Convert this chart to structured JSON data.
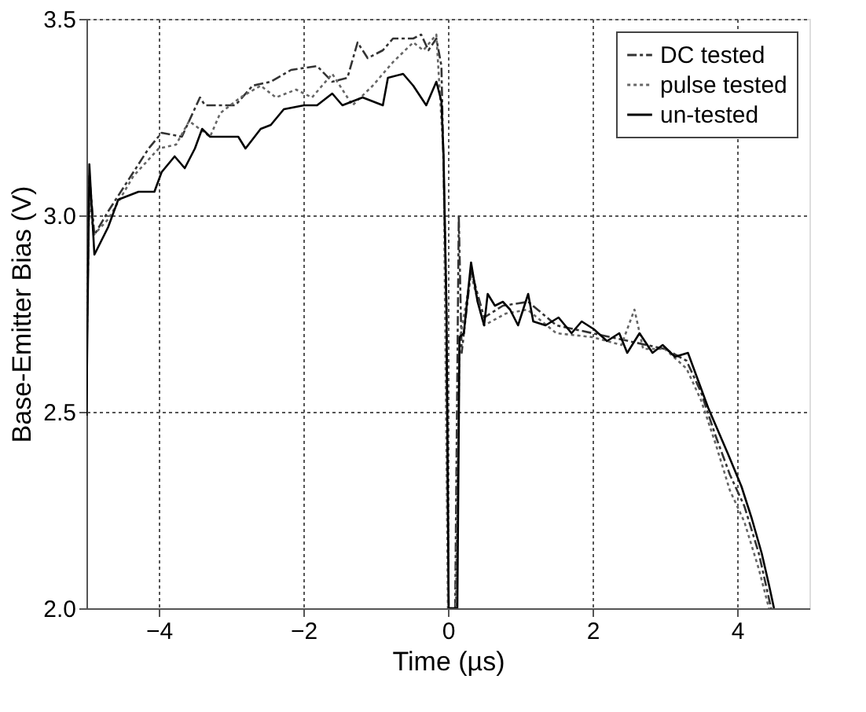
{
  "chart_data": {
    "type": "line",
    "xlabel": "Time (µs)",
    "ylabel": "Base-Emitter Bias (V)",
    "xlim": [
      -5,
      5
    ],
    "ylim": [
      2.0,
      3.5
    ],
    "xticks": [
      -4,
      -2,
      0,
      2,
      4
    ],
    "yticks": [
      {
        "value": 2.0,
        "label": "2.0"
      },
      {
        "value": 2.5,
        "label": "2.5"
      },
      {
        "value": 3.0,
        "label": "3.0"
      },
      {
        "value": 3.5,
        "label": "3.5"
      }
    ],
    "grid": true,
    "legend": "top right",
    "marker": "none",
    "series": [
      {
        "name": "DC tested",
        "color": "#333333",
        "line_style": "dashed",
        "x": [
          -5.0,
          -4.96,
          -4.89,
          -4.7,
          -4.35,
          -4.14,
          -3.96,
          -3.68,
          -3.43,
          -3.36,
          -2.94,
          -2.7,
          -2.45,
          -2.17,
          -1.81,
          -1.6,
          -1.39,
          -1.25,
          -1.11,
          -0.9,
          -0.76,
          -0.48,
          -0.37,
          -0.27,
          -0.16,
          -0.09,
          -0.02,
          0.01,
          0.1,
          0.15,
          0.19,
          0.32,
          0.5,
          0.76,
          1.11,
          1.5,
          2.0,
          2.5,
          3.0,
          3.3,
          3.5,
          3.7,
          3.9,
          4.1,
          4.3,
          4.47
        ],
        "values": [
          2.6,
          3.1,
          2.95,
          3.01,
          3.11,
          3.17,
          3.21,
          3.2,
          3.3,
          3.28,
          3.28,
          3.33,
          3.34,
          3.37,
          3.38,
          3.34,
          3.35,
          3.44,
          3.4,
          3.42,
          3.45,
          3.45,
          3.46,
          3.42,
          3.45,
          3.38,
          2.76,
          2.0,
          2.0,
          3.0,
          2.65,
          2.86,
          2.74,
          2.77,
          2.78,
          2.72,
          2.7,
          2.68,
          2.66,
          2.63,
          2.55,
          2.44,
          2.34,
          2.26,
          2.14,
          2.0
        ]
      },
      {
        "name": "pulse tested",
        "color": "#666666",
        "line_style": "dotted",
        "x": [
          -5.0,
          -4.96,
          -4.9,
          -4.7,
          -4.35,
          -4.0,
          -3.76,
          -3.58,
          -3.29,
          -3.15,
          -2.87,
          -2.59,
          -2.38,
          -2.1,
          -1.88,
          -1.6,
          -1.32,
          -1.04,
          -0.76,
          -0.48,
          -0.34,
          -0.16,
          -0.06,
          0.0,
          0.11,
          0.16,
          0.32,
          0.5,
          0.8,
          1.1,
          1.5,
          2.0,
          2.4,
          2.58,
          2.7,
          3.0,
          3.3,
          3.5,
          3.7,
          3.9,
          4.1,
          4.3,
          4.44
        ],
        "values": [
          2.7,
          3.05,
          2.95,
          2.99,
          3.1,
          3.17,
          3.18,
          3.24,
          3.2,
          3.26,
          3.3,
          3.33,
          3.3,
          3.32,
          3.3,
          3.36,
          3.28,
          3.33,
          3.39,
          3.44,
          3.42,
          3.46,
          3.15,
          2.0,
          2.0,
          2.68,
          2.85,
          2.72,
          2.75,
          2.76,
          2.7,
          2.69,
          2.67,
          2.76,
          2.66,
          2.66,
          2.61,
          2.53,
          2.42,
          2.3,
          2.22,
          2.1,
          2.0
        ]
      },
      {
        "name": "un-tested",
        "color": "#000000",
        "line_style": "solid",
        "x": [
          -5.0,
          -4.96,
          -4.89,
          -4.7,
          -4.56,
          -4.28,
          -4.06,
          -3.96,
          -3.78,
          -3.64,
          -3.5,
          -3.4,
          -3.29,
          -2.9,
          -2.8,
          -2.59,
          -2.45,
          -2.27,
          -1.99,
          -1.81,
          -1.6,
          -1.46,
          -1.18,
          -0.9,
          -0.83,
          -0.62,
          -0.48,
          -0.3,
          -0.16,
          -0.09,
          -0.06,
          -0.02,
          0.01,
          0.13,
          0.16,
          0.22,
          0.32,
          0.41,
          0.5,
          0.55,
          0.65,
          0.76,
          0.86,
          0.97,
          1.11,
          1.18,
          1.35,
          1.53,
          1.71,
          1.85,
          2.02,
          2.2,
          2.37,
          2.48,
          2.65,
          2.83,
          2.97,
          3.14,
          3.32,
          3.46,
          3.6,
          3.74,
          3.88,
          4.06,
          4.2,
          4.34,
          4.44,
          4.51
        ],
        "values": [
          2.49,
          3.13,
          2.9,
          2.97,
          3.04,
          3.06,
          3.06,
          3.11,
          3.15,
          3.12,
          3.17,
          3.22,
          3.2,
          3.2,
          3.17,
          3.22,
          3.23,
          3.27,
          3.28,
          3.28,
          3.31,
          3.28,
          3.3,
          3.28,
          3.35,
          3.36,
          3.33,
          3.28,
          3.34,
          3.29,
          3.15,
          2.76,
          2.0,
          2.0,
          2.69,
          2.7,
          2.88,
          2.78,
          2.72,
          2.8,
          2.77,
          2.78,
          2.76,
          2.72,
          2.8,
          2.73,
          2.72,
          2.74,
          2.7,
          2.73,
          2.71,
          2.68,
          2.7,
          2.65,
          2.7,
          2.65,
          2.67,
          2.64,
          2.65,
          2.58,
          2.51,
          2.45,
          2.39,
          2.31,
          2.23,
          2.14,
          2.06,
          2.0
        ]
      }
    ]
  }
}
